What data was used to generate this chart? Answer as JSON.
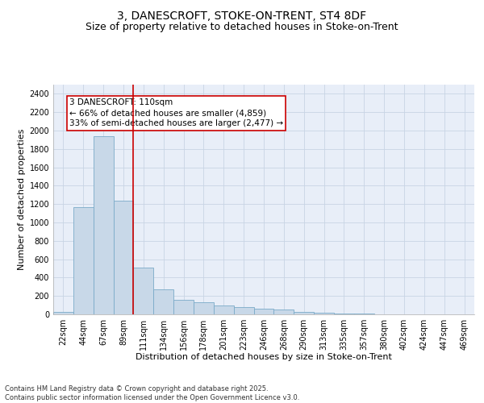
{
  "title1": "3, DANESCROFT, STOKE-ON-TRENT, ST4 8DF",
  "title2": "Size of property relative to detached houses in Stoke-on-Trent",
  "xlabel": "Distribution of detached houses by size in Stoke-on-Trent",
  "ylabel": "Number of detached properties",
  "categories": [
    "22sqm",
    "44sqm",
    "67sqm",
    "89sqm",
    "111sqm",
    "134sqm",
    "156sqm",
    "178sqm",
    "201sqm",
    "223sqm",
    "246sqm",
    "268sqm",
    "290sqm",
    "313sqm",
    "335sqm",
    "357sqm",
    "380sqm",
    "402sqm",
    "424sqm",
    "447sqm",
    "469sqm"
  ],
  "values": [
    30,
    1170,
    1940,
    1240,
    510,
    270,
    160,
    130,
    95,
    80,
    60,
    50,
    30,
    15,
    10,
    5,
    3,
    2,
    1,
    1,
    1
  ],
  "bar_color": "#c8d8e8",
  "bar_edge_color": "#7aaac8",
  "vline_color": "#cc0000",
  "annotation_text": "3 DANESCROFT: 110sqm\n← 66% of detached houses are smaller (4,859)\n33% of semi-detached houses are larger (2,477) →",
  "annotation_box_color": "#cc0000",
  "ylim": [
    0,
    2500
  ],
  "yticks": [
    0,
    200,
    400,
    600,
    800,
    1000,
    1200,
    1400,
    1600,
    1800,
    2000,
    2200,
    2400
  ],
  "grid_color": "#c8d4e4",
  "background_color": "#e8eef8",
  "footer1": "Contains HM Land Registry data © Crown copyright and database right 2025.",
  "footer2": "Contains public sector information licensed under the Open Government Licence v3.0.",
  "title_fontsize": 10,
  "subtitle_fontsize": 9,
  "axis_label_fontsize": 8,
  "tick_fontsize": 7,
  "annotation_fontsize": 7.5
}
